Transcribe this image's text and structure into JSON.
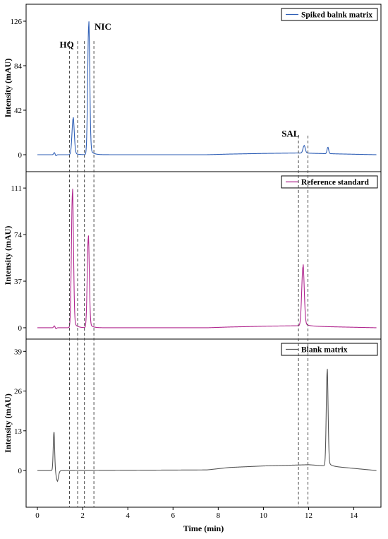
{
  "chart_data": {
    "type": "line",
    "shared_x": {
      "label": "Time (min)",
      "range": [
        -0.5,
        15.2
      ],
      "ticks": [
        0,
        2,
        4,
        6,
        8,
        10,
        12,
        14
      ]
    },
    "dashed_markers": [
      1.42,
      1.78,
      2.08,
      2.5,
      11.55,
      11.97
    ],
    "annotations": [
      {
        "text": "HQ",
        "x": 1.3,
        "y": 101
      },
      {
        "text": "NIC",
        "x": 2.9,
        "y": 118
      },
      {
        "text": "SAL",
        "x": 11.2,
        "y": 17
      }
    ],
    "panels": [
      {
        "ylabel": "Intensity (mAU)",
        "ylim": [
          -16,
          142
        ],
        "yticks": [
          0,
          42,
          84,
          126
        ],
        "series": {
          "name": "Spiked balnk matrix",
          "color": "#2f5fb6",
          "baseline": [
            [
              0,
              0
            ],
            [
              7.5,
              0
            ],
            [
              8.5,
              0.6
            ],
            [
              10,
              1.2
            ],
            [
              11.5,
              1.6
            ],
            [
              13,
              0.9
            ],
            [
              15,
              0
            ]
          ],
          "peaks": [
            {
              "x": 0.75,
              "h": 2,
              "w": 0.03
            },
            {
              "x": 0.82,
              "h": -1,
              "w": 0.03
            },
            {
              "x": 1.58,
              "h": 34,
              "w": 0.05
            },
            {
              "x": 2.27,
              "h": 122,
              "w": 0.045
            },
            {
              "x": 11.8,
              "h": 7,
              "w": 0.05
            },
            {
              "x": 12.85,
              "h": 6,
              "w": 0.035
            }
          ]
        }
      },
      {
        "ylabel": "Intensity (mAU)",
        "ylim": [
          -9,
          124
        ],
        "yticks": [
          0,
          37,
          74,
          111
        ],
        "series": {
          "name": "Reference standard",
          "color": "#b0268e",
          "baseline": [
            [
              0,
              0
            ],
            [
              7.5,
              0
            ],
            [
              8.5,
              0.6
            ],
            [
              10,
              1.2
            ],
            [
              11.5,
              1.6
            ],
            [
              13,
              0.8
            ],
            [
              15,
              0
            ]
          ],
          "peaks": [
            {
              "x": 0.75,
              "h": 1.5,
              "w": 0.03
            },
            {
              "x": 0.82,
              "h": -0.8,
              "w": 0.03
            },
            {
              "x": 1.55,
              "h": 107,
              "w": 0.045
            },
            {
              "x": 2.25,
              "h": 71,
              "w": 0.045
            },
            {
              "x": 11.75,
              "h": 47,
              "w": 0.055
            }
          ]
        }
      },
      {
        "ylabel": "Intensity (mAU)",
        "ylim": [
          -12,
          43
        ],
        "yticks": [
          0,
          13,
          26,
          39
        ],
        "series": {
          "name": "Blank matrix",
          "color": "#555555",
          "baseline": [
            [
              0,
              0
            ],
            [
              1.2,
              0
            ],
            [
              7.5,
              0.2
            ],
            [
              8.5,
              1.0
            ],
            [
              10,
              1.5
            ],
            [
              12,
              1.9
            ],
            [
              13,
              1.4
            ],
            [
              15,
              0
            ]
          ],
          "peaks": [
            {
              "x": 0.73,
              "h": 12.5,
              "w": 0.03
            },
            {
              "x": 0.88,
              "h": -3.5,
              "w": 0.05
            },
            {
              "x": 12.82,
              "h": 31,
              "w": 0.04
            }
          ]
        }
      }
    ]
  }
}
